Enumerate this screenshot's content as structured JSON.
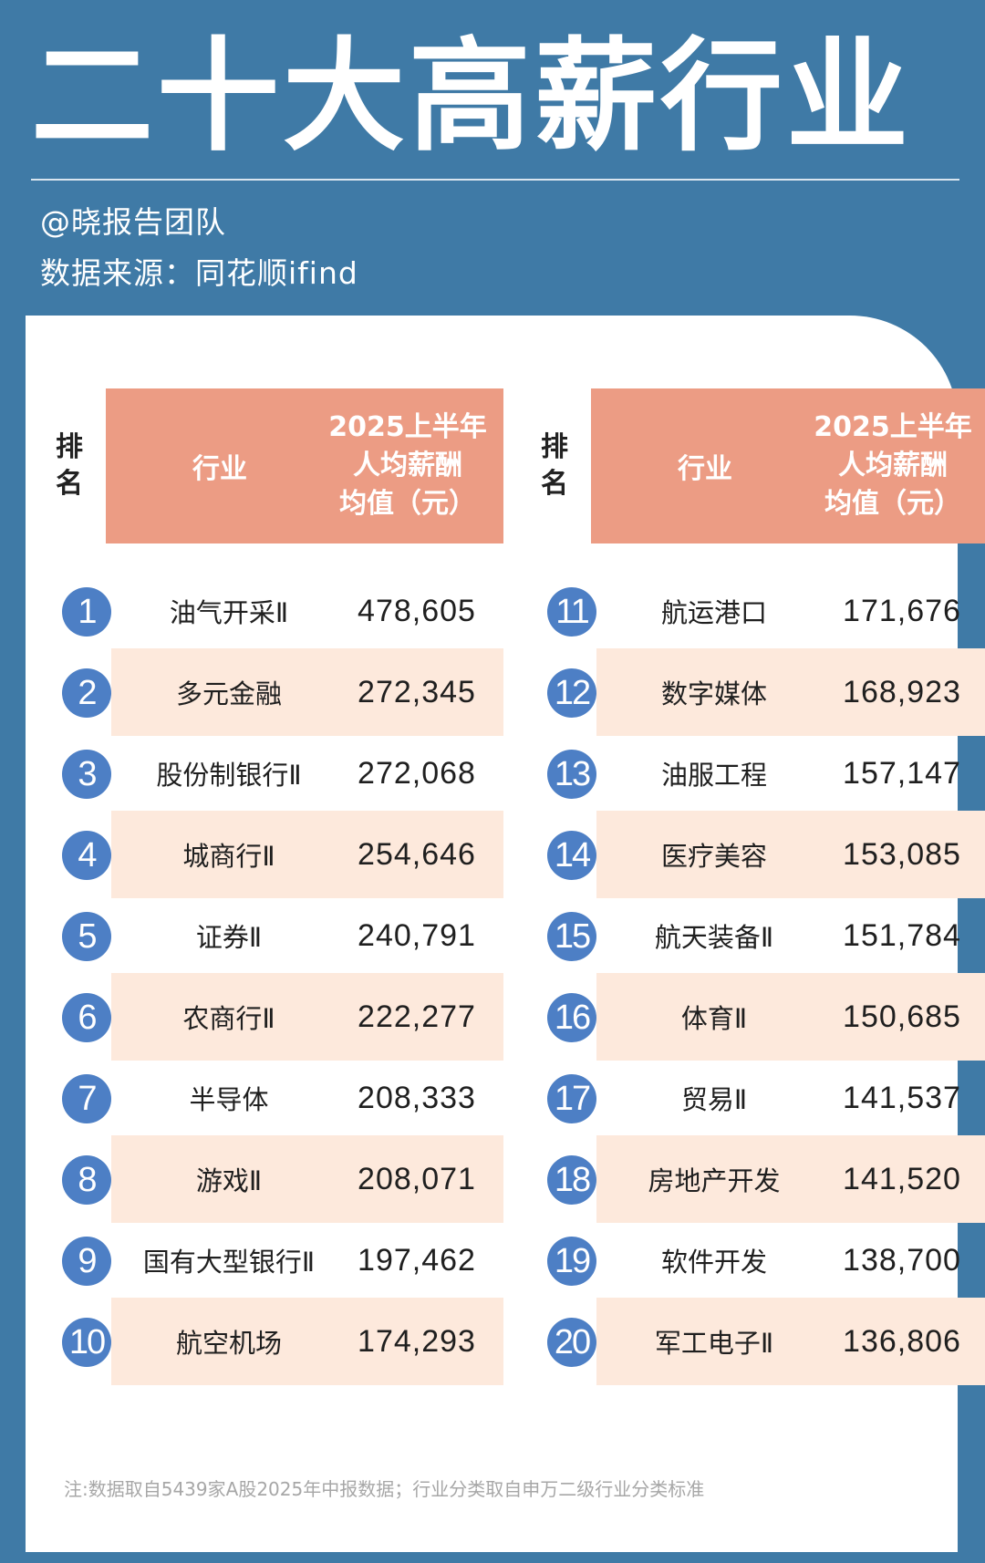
{
  "header": {
    "title": "二十大高薪行业",
    "author": "@晓报告团队",
    "source": "数据来源：同花顺ifind"
  },
  "table_header": {
    "rank_chars": [
      "排",
      "名"
    ],
    "industry": "行业",
    "salary_lines": [
      "2025上半年",
      "人均薪酬",
      "均值（元）"
    ]
  },
  "rows": [
    {
      "rank": "1",
      "industry": "油气开采Ⅱ",
      "salary": "478,605"
    },
    {
      "rank": "2",
      "industry": "多元金融",
      "salary": "272,345"
    },
    {
      "rank": "3",
      "industry": "股份制银行Ⅱ",
      "salary": "272,068"
    },
    {
      "rank": "4",
      "industry": "城商行Ⅱ",
      "salary": "254,646"
    },
    {
      "rank": "5",
      "industry": "证券Ⅱ",
      "salary": "240,791"
    },
    {
      "rank": "6",
      "industry": "农商行Ⅱ",
      "salary": "222,277"
    },
    {
      "rank": "7",
      "industry": "半导体",
      "salary": "208,333"
    },
    {
      "rank": "8",
      "industry": "游戏Ⅱ",
      "salary": "208,071"
    },
    {
      "rank": "9",
      "industry": "国有大型银行Ⅱ",
      "salary": "197,462"
    },
    {
      "rank": "10",
      "industry": "航空机场",
      "salary": "174,293"
    },
    {
      "rank": "11",
      "industry": "航运港口",
      "salary": "171,676"
    },
    {
      "rank": "12",
      "industry": "数字媒体",
      "salary": "168,923"
    },
    {
      "rank": "13",
      "industry": "油服工程",
      "salary": "157,147"
    },
    {
      "rank": "14",
      "industry": "医疗美容",
      "salary": "153,085"
    },
    {
      "rank": "15",
      "industry": "航天装备Ⅱ",
      "salary": "151,784"
    },
    {
      "rank": "16",
      "industry": "体育Ⅱ",
      "salary": "150,685"
    },
    {
      "rank": "17",
      "industry": "贸易Ⅱ",
      "salary": "141,537"
    },
    {
      "rank": "18",
      "industry": "房地产开发",
      "salary": "141,520"
    },
    {
      "rank": "19",
      "industry": "软件开发",
      "salary": "138,700"
    },
    {
      "rank": "20",
      "industry": "军工电子Ⅱ",
      "salary": "136,806"
    }
  ],
  "footnote": "注:数据取自5439家A股2025年中报数据；行业分类取自申万二级行业分类标准",
  "colors": {
    "background": "#3f7aa6",
    "header_fill": "#ec9c84",
    "stripe_fill": "#fde9dc",
    "badge_fill": "#4d7fc5"
  }
}
